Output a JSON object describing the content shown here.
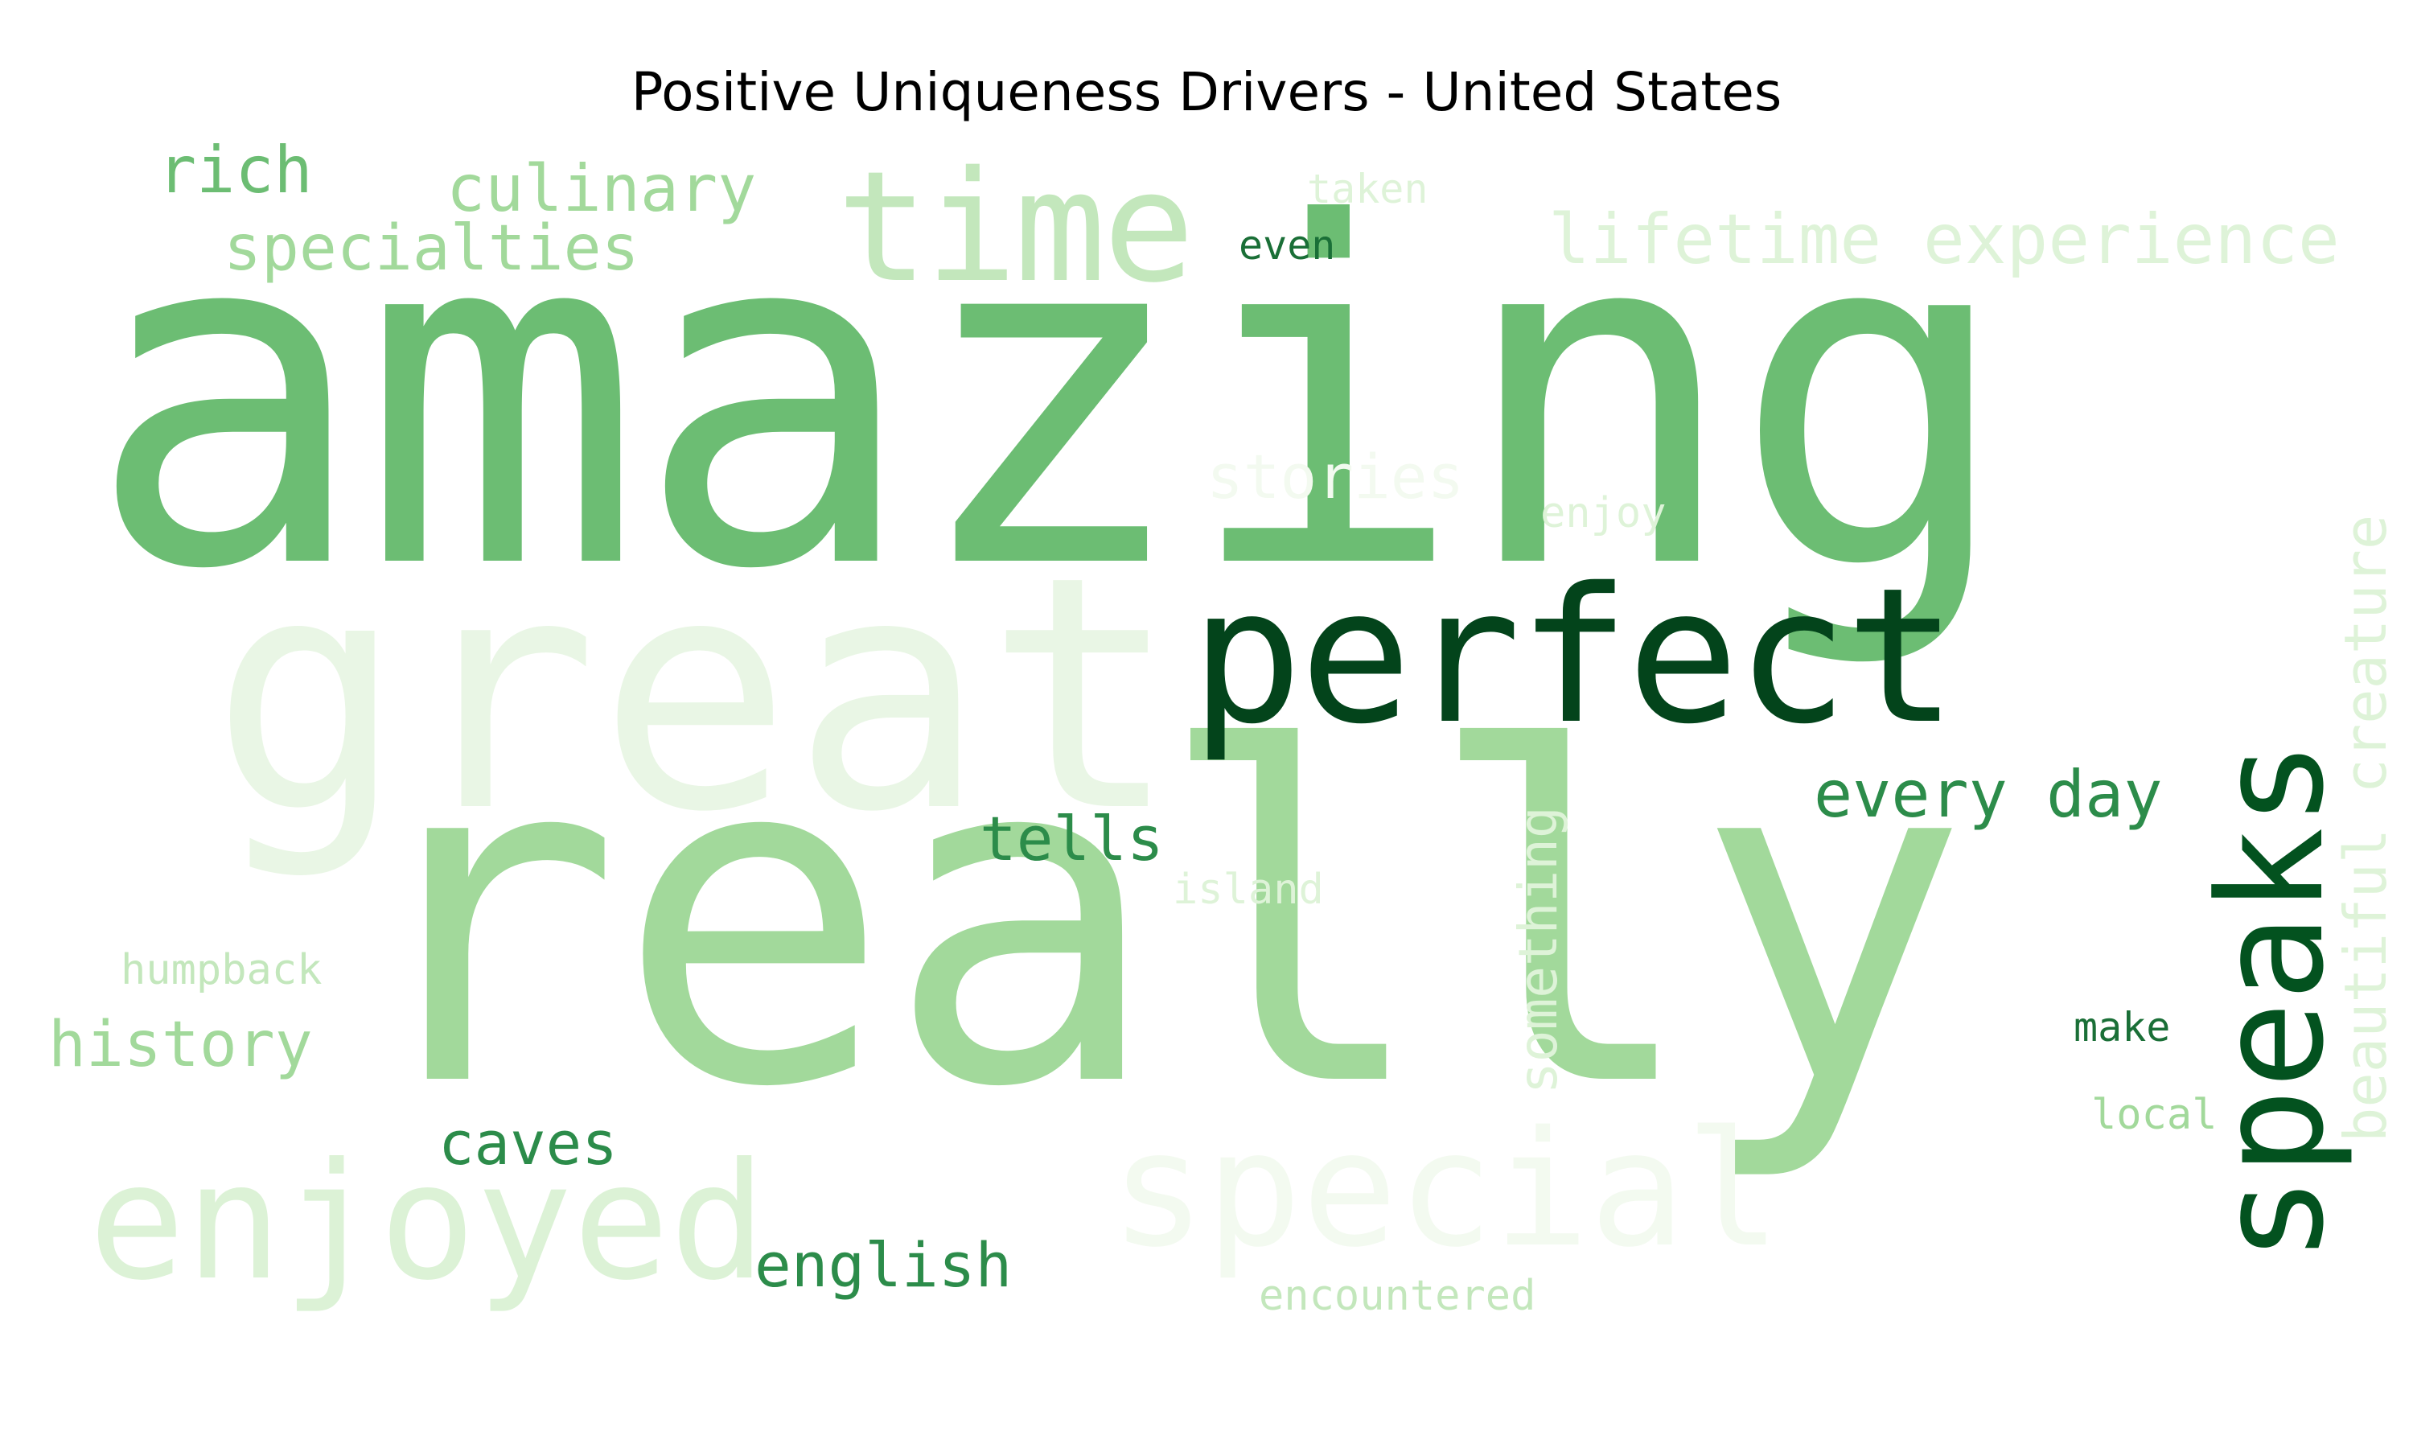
{
  "title": "Positive Uniqueness Drivers - United States",
  "words": [
    {
      "text": "amazing",
      "color": "#6cbd73"
    },
    {
      "text": "really",
      "color": "#a2d99b"
    },
    {
      "text": "great",
      "color": "#e9f6e5"
    },
    {
      "text": "perfect",
      "color": "#03441b"
    },
    {
      "text": "time",
      "color": "#c3e7bc"
    },
    {
      "text": "special",
      "color": "#f3faf0"
    },
    {
      "text": "enjoyed",
      "color": "#dcf2d6"
    },
    {
      "text": "speaks",
      "color": "#03521f"
    },
    {
      "text": "lifetime experience",
      "color": "#def3d8"
    },
    {
      "text": "culinary",
      "color": "#a2d99b"
    },
    {
      "text": "specialties",
      "color": "#a2d99b"
    },
    {
      "text": "rich",
      "color": "#6cbd73"
    },
    {
      "text": "beautiful creature",
      "color": "#def3d8"
    },
    {
      "text": "every day",
      "color": "#2c8c4a"
    },
    {
      "text": "tells",
      "color": "#2c8c4a"
    },
    {
      "text": "history",
      "color": "#a2d99b"
    },
    {
      "text": "something",
      "color": "#def3d8"
    },
    {
      "text": "english",
      "color": "#2c8c4a"
    },
    {
      "text": "caves",
      "color": "#2c8c4a"
    },
    {
      "text": "stories",
      "color": "#f3faf0"
    },
    {
      "text": "island",
      "color": "#def3d8"
    },
    {
      "text": "humpback",
      "color": "#c3e7bc"
    },
    {
      "text": "encountered",
      "color": "#c3e7bc"
    },
    {
      "text": "enjoy",
      "color": "#def3d8"
    },
    {
      "text": "taken",
      "color": "#def3d8"
    },
    {
      "text": "even",
      "color": "#1a6f37"
    },
    {
      "text": "make",
      "color": "#1a6f37"
    },
    {
      "text": "local",
      "color": "#a2d99b"
    }
  ]
}
